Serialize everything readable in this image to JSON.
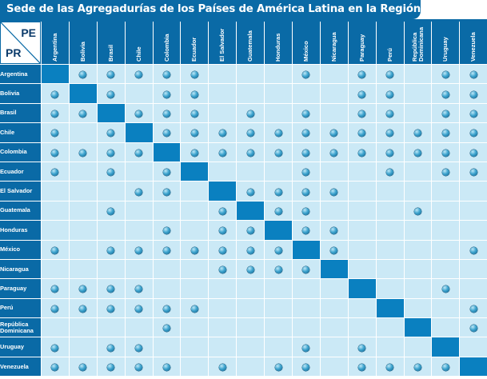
{
  "title": "Sede de las Agregadurías de los Países de América Latina en la Región",
  "corner": {
    "col_label": "PE",
    "row_label": "PR"
  },
  "colors": {
    "header": "#0a6aa6",
    "cell": "#cbe9f6",
    "diagonal": "#0a80c0"
  },
  "marker_icon": "sphere-dot-icon",
  "countries": [
    "Argentina",
    "Bolivia",
    "Brasil",
    "Chile",
    "Colombia",
    "Ecuador",
    "El Salvador",
    "Guatemala",
    "Honduras",
    "México",
    "Nicaragua",
    "Paraguay",
    "Perú",
    "República\nDominicana",
    "Uruguay",
    "Venezuela"
  ],
  "matrix": [
    [
      0,
      1,
      1,
      1,
      1,
      1,
      0,
      0,
      0,
      1,
      0,
      1,
      1,
      0,
      1,
      1
    ],
    [
      1,
      0,
      1,
      0,
      1,
      1,
      0,
      0,
      0,
      0,
      0,
      1,
      1,
      0,
      1,
      1
    ],
    [
      1,
      1,
      0,
      1,
      1,
      1,
      0,
      1,
      0,
      1,
      0,
      1,
      1,
      0,
      1,
      1
    ],
    [
      1,
      0,
      1,
      0,
      1,
      1,
      1,
      1,
      1,
      1,
      1,
      1,
      1,
      1,
      1,
      1
    ],
    [
      1,
      1,
      1,
      1,
      0,
      1,
      1,
      1,
      1,
      1,
      1,
      1,
      1,
      1,
      1,
      1
    ],
    [
      1,
      0,
      1,
      0,
      1,
      0,
      0,
      0,
      0,
      1,
      0,
      0,
      1,
      0,
      1,
      1
    ],
    [
      0,
      0,
      0,
      1,
      1,
      0,
      0,
      1,
      1,
      1,
      1,
      0,
      0,
      0,
      0,
      0
    ],
    [
      0,
      0,
      1,
      0,
      0,
      0,
      1,
      0,
      1,
      1,
      0,
      0,
      0,
      1,
      0,
      0
    ],
    [
      0,
      0,
      0,
      0,
      1,
      0,
      1,
      1,
      0,
      1,
      1,
      0,
      0,
      0,
      0,
      0
    ],
    [
      1,
      0,
      1,
      1,
      1,
      1,
      1,
      1,
      1,
      0,
      1,
      0,
      0,
      0,
      0,
      1
    ],
    [
      0,
      0,
      0,
      0,
      0,
      0,
      1,
      1,
      1,
      1,
      0,
      0,
      0,
      0,
      0,
      0
    ],
    [
      1,
      1,
      1,
      1,
      0,
      0,
      0,
      0,
      0,
      0,
      0,
      0,
      0,
      0,
      1,
      0
    ],
    [
      1,
      1,
      1,
      1,
      1,
      1,
      0,
      0,
      0,
      0,
      0,
      0,
      0,
      0,
      0,
      1
    ],
    [
      0,
      0,
      0,
      0,
      1,
      0,
      0,
      0,
      0,
      0,
      0,
      0,
      0,
      0,
      0,
      1
    ],
    [
      1,
      0,
      1,
      1,
      0,
      0,
      0,
      0,
      0,
      1,
      0,
      1,
      0,
      0,
      0,
      0
    ],
    [
      1,
      1,
      1,
      1,
      1,
      0,
      1,
      0,
      1,
      1,
      0,
      1,
      1,
      1,
      1,
      0
    ]
  ]
}
